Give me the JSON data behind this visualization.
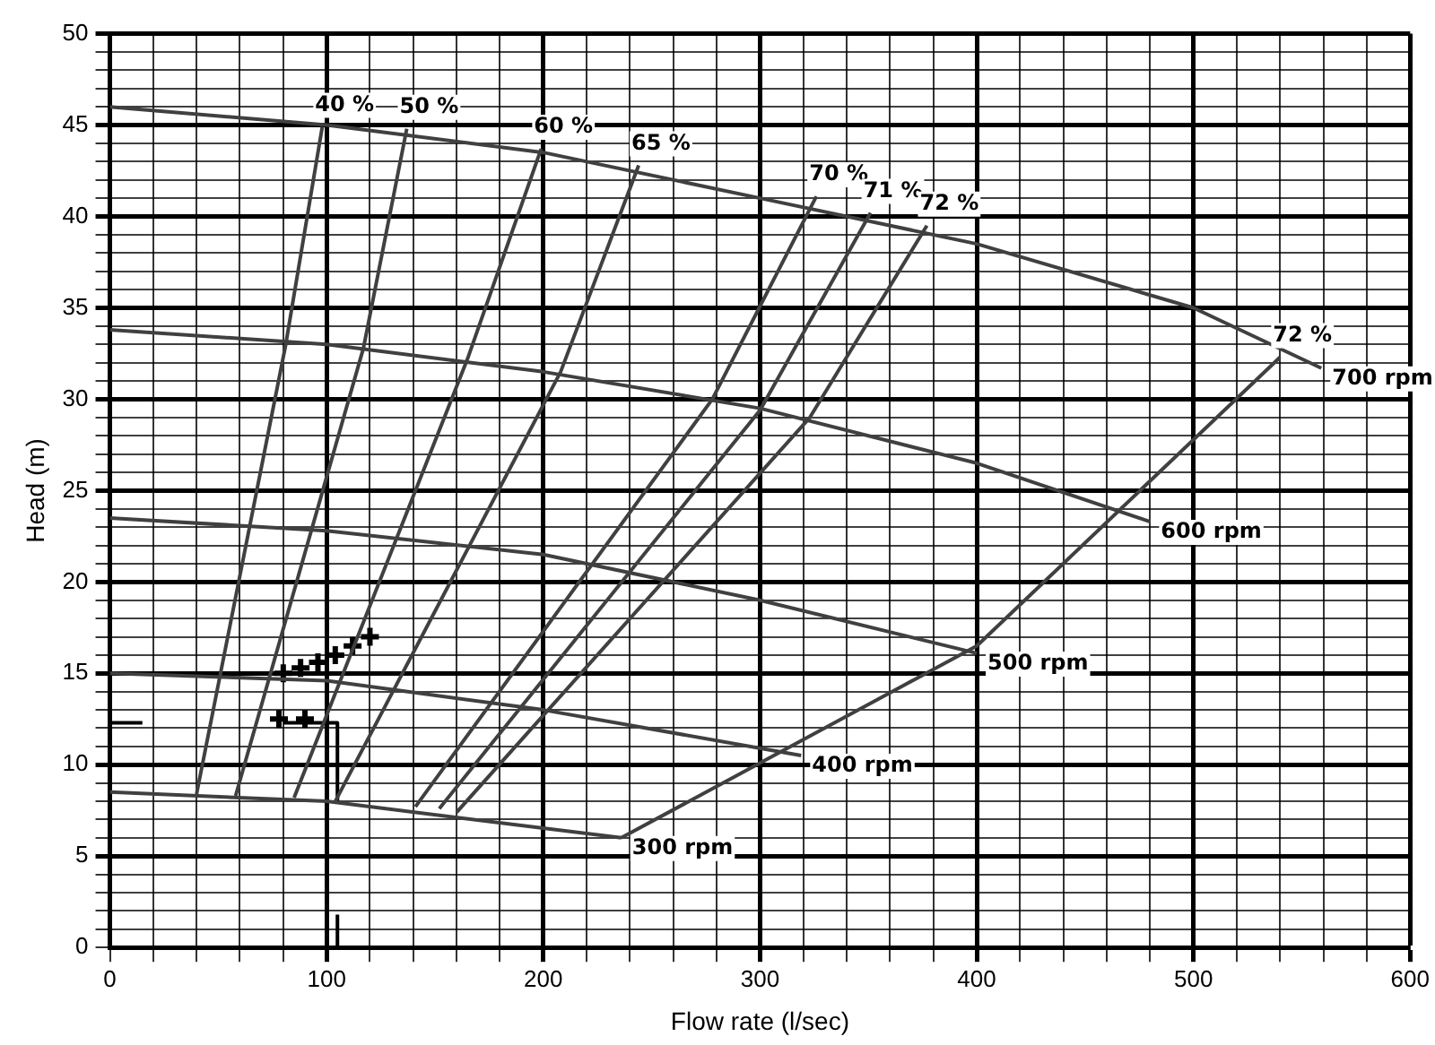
{
  "chart_data": {
    "type": "line",
    "xlabel": "Flow rate (l/sec)",
    "ylabel": "Head (m)",
    "xlim": [
      0,
      600
    ],
    "ylim": [
      0,
      50
    ],
    "xticks": [
      0,
      {
        "value": 20,
        "label": null
      },
      {
        "value": 40,
        "label": null
      },
      {
        "value": 60,
        "label": null
      },
      {
        "value": 80,
        "label": null
      },
      100,
      {
        "value": 120,
        "label": null
      },
      {
        "value": 140,
        "label": null
      },
      {
        "value": 160,
        "label": null
      },
      {
        "value": 180,
        "label": null
      },
      200,
      {
        "value": 220,
        "label": null
      },
      {
        "value": 240,
        "label": null
      },
      {
        "value": 260,
        "label": null
      },
      {
        "value": 280,
        "label": null
      },
      300,
      {
        "value": 320,
        "label": null
      },
      {
        "value": 340,
        "label": null
      },
      {
        "value": 360,
        "label": null
      },
      {
        "value": 380,
        "label": null
      },
      400,
      {
        "value": 420,
        "label": null
      },
      {
        "value": 440,
        "label": null
      },
      {
        "value": 460,
        "label": null
      },
      {
        "value": 480,
        "label": null
      },
      500,
      {
        "value": 520,
        "label": null
      },
      {
        "value": 540,
        "label": null
      },
      {
        "value": 560,
        "label": null
      },
      {
        "value": 580,
        "label": null
      },
      600
    ],
    "yticks": [
      0,
      {
        "value": 1,
        "label": null
      },
      {
        "value": 2,
        "label": null
      },
      {
        "value": 3,
        "label": null
      },
      {
        "value": 4,
        "label": null
      },
      5,
      {
        "value": 6,
        "label": null
      },
      {
        "value": 7,
        "label": null
      },
      {
        "value": 8,
        "label": null
      },
      {
        "value": 9,
        "label": null
      },
      10,
      {
        "value": 11,
        "label": null
      },
      {
        "value": 12,
        "label": null
      },
      {
        "value": 13,
        "label": null
      },
      {
        "value": 14,
        "label": null
      },
      15,
      {
        "value": 16,
        "label": null
      },
      {
        "value": 17,
        "label": null
      },
      {
        "value": 18,
        "label": null
      },
      {
        "value": 19,
        "label": null
      },
      20,
      {
        "value": 21,
        "label": null
      },
      {
        "value": 22,
        "label": null
      },
      {
        "value": 23,
        "label": null
      },
      {
        "value": 24,
        "label": null
      },
      25,
      {
        "value": 26,
        "label": null
      },
      {
        "value": 27,
        "label": null
      },
      {
        "value": 28,
        "label": null
      },
      {
        "value": 29,
        "label": null
      },
      30,
      {
        "value": 31,
        "label": null
      },
      {
        "value": 32,
        "label": null
      },
      {
        "value": 33,
        "label": null
      },
      {
        "value": 34,
        "label": null
      },
      35,
      {
        "value": 36,
        "label": null
      },
      {
        "value": 37,
        "label": null
      },
      {
        "value": 38,
        "label": null
      },
      {
        "value": 39,
        "label": null
      },
      40,
      {
        "value": 41,
        "label": null
      },
      {
        "value": 42,
        "label": null
      },
      {
        "value": 43,
        "label": null
      },
      {
        "value": 44,
        "label": null
      },
      45,
      {
        "value": 46,
        "label": null
      },
      {
        "value": 47,
        "label": null
      },
      {
        "value": 48,
        "label": null
      },
      {
        "value": 49,
        "label": null
      },
      50
    ],
    "grid": true,
    "legend": false,
    "marker": "none",
    "line_style": "solid",
    "series": [
      {
        "name": "700 rpm",
        "color": "#404040",
        "x": [
          0,
          100,
          200,
          300,
          400,
          500,
          559
        ],
        "values": [
          46,
          45,
          43.5,
          41,
          38.5,
          35,
          31.7
        ]
      },
      {
        "name": "600 rpm",
        "color": "#404040",
        "x": [
          0,
          100,
          200,
          300,
          400,
          480
        ],
        "values": [
          33.8,
          33,
          31.5,
          29.5,
          26.5,
          23.3
        ]
      },
      {
        "name": "500 rpm",
        "color": "#404040",
        "x": [
          0,
          100,
          200,
          300,
          400
        ],
        "values": [
          23.5,
          22.8,
          21.5,
          19,
          16.1
        ]
      },
      {
        "name": "400 rpm",
        "color": "#404040",
        "x": [
          0,
          100,
          200,
          319
        ],
        "values": [
          15,
          14.6,
          13,
          10.5
        ]
      },
      {
        "name": "300 rpm",
        "color": "#404040",
        "x": [
          0,
          100,
          236
        ],
        "values": [
          8.5,
          8,
          6
        ]
      },
      {
        "name": "40 %",
        "color": "#404040",
        "x": [
          40,
          81,
          98
        ],
        "values": [
          8.4,
          32.9,
          44.9
        ]
      },
      {
        "name": "50 %",
        "color": "#404040",
        "x": [
          58,
          117,
          137
        ],
        "values": [
          8.3,
          32.8,
          44.8
        ]
      },
      {
        "name": "60 %",
        "color": "#404040",
        "x": [
          85,
          165,
          199
        ],
        "values": [
          8.2,
          32.2,
          43.7
        ]
      },
      {
        "name": "65 %",
        "color": "#404040",
        "x": [
          104,
          208,
          244
        ],
        "values": [
          8,
          31.5,
          42.8
        ]
      },
      {
        "name": "70 %",
        "color": "#404040",
        "x": [
          141,
          278,
          326
        ],
        "values": [
          7.7,
          30,
          41.1
        ]
      },
      {
        "name": "71 %",
        "color": "#404040",
        "x": [
          152,
          300,
          351
        ],
        "values": [
          7.6,
          29.4,
          40.2
        ]
      },
      {
        "name": "72 %",
        "color": "#404040",
        "x": [
          160,
          323,
          377
        ],
        "values": [
          7.4,
          29,
          39.5
        ]
      },
      {
        "name": "72 %",
        "color": "#404040",
        "x": [
          236,
          400,
          540
        ],
        "values": [
          6,
          16.5,
          32.3
        ]
      },
      {
        "color": "#000000",
        "x": [
          80,
          105,
          105
        ],
        "values": [
          12.3,
          12.3,
          8
        ]
      },
      {
        "color": "#000000",
        "x": [
          0,
          15
        ],
        "values": [
          12.3,
          12.3
        ]
      },
      {
        "color": "#000000",
        "x": [
          105,
          105
        ],
        "values": [
          0,
          1.8
        ]
      },
      {
        "type": "scatter",
        "marker": "cross",
        "color": "#000000",
        "x": [
          78,
          90,
          80,
          88,
          96,
          104,
          112,
          120
        ],
        "values": [
          12.5,
          12.5,
          15,
          15.3,
          15.6,
          16,
          16.5,
          17
        ]
      }
    ]
  }
}
